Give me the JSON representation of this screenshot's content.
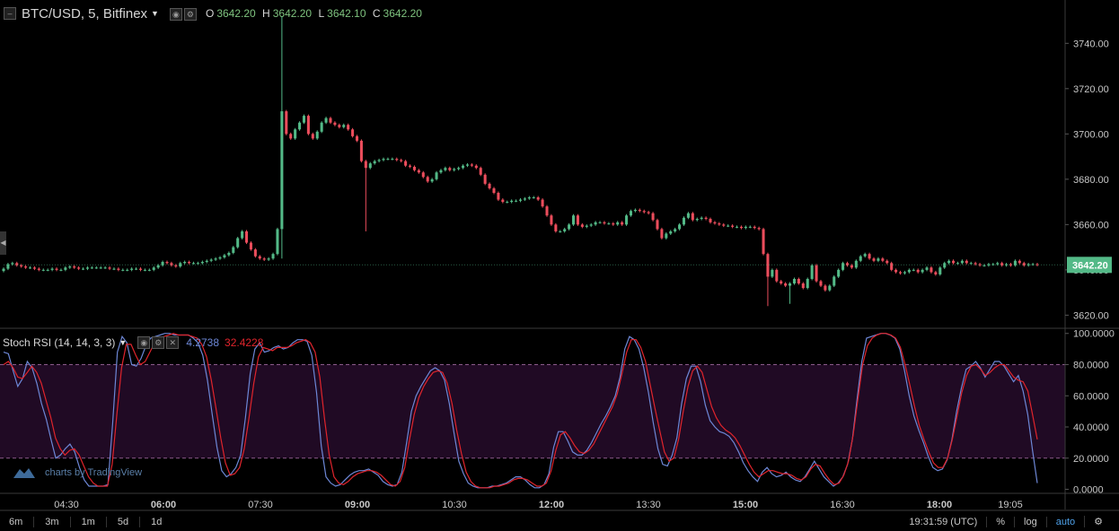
{
  "header": {
    "symbol": "BTC/USD, 5, Bitfinex",
    "o_label": "O",
    "o": "3642.20",
    "h_label": "H",
    "h": "3642.20",
    "l_label": "L",
    "l": "3642.10",
    "c_label": "C",
    "c": "3642.20"
  },
  "indicator": {
    "name": "Stoch RSI (14, 14, 3, 3)",
    "k_value": "4.2738",
    "d_value": "32.4228",
    "k_color": "#6d87d6",
    "d_color": "#e0242c"
  },
  "branding": "charts by TradingView",
  "timeframes": [
    "6m",
    "3m",
    "1m",
    "5d",
    "1d"
  ],
  "status": {
    "clock": "19:31:59 (UTC)",
    "percent": "%",
    "log": "log",
    "auto": "auto"
  },
  "colors": {
    "up": "#53b987",
    "down": "#eb4d5c",
    "band": "#200a24",
    "bg": "#000000"
  },
  "chart_data": [
    {
      "type": "candlestick",
      "title": "BTC/USD, 5, Bitfinex",
      "ylim": [
        3615,
        3752
      ],
      "yticks": [
        3620,
        3640,
        3660,
        3680,
        3700,
        3720,
        3740
      ],
      "ytick_labels": [
        "3620.00",
        "3640.00",
        "3660.00",
        "3680.00",
        "3700.00",
        "3720.00",
        "3740.00"
      ],
      "last_price": "3642.20",
      "xticks": [
        "04:30",
        "06:00",
        "07:30",
        "09:00",
        "10:30",
        "12:00",
        "13:30",
        "15:00",
        "16:30",
        "18:00",
        "19:05"
      ],
      "xticks_bold": [
        false,
        true,
        false,
        true,
        false,
        true,
        false,
        true,
        false,
        true,
        false
      ],
      "close": [
        3640.5,
        3642.5,
        3643,
        3642,
        3641.5,
        3641,
        3641,
        3640.5,
        3640,
        3640,
        3640,
        3640.5,
        3640,
        3640,
        3641,
        3641.5,
        3641,
        3640.5,
        3640.5,
        3641,
        3641,
        3641,
        3641,
        3641,
        3640.5,
        3640.5,
        3640,
        3640,
        3640,
        3640.5,
        3640.5,
        3640,
        3640,
        3640,
        3641,
        3642,
        3643.5,
        3643,
        3642,
        3641.5,
        3643,
        3643.5,
        3643,
        3643,
        3643,
        3643.5,
        3644,
        3644.5,
        3645,
        3645.5,
        3646.5,
        3647.5,
        3650,
        3654,
        3657,
        3652,
        3649,
        3646,
        3645,
        3644.5,
        3645,
        3647,
        3658,
        3710,
        3700,
        3698,
        3702,
        3705,
        3708,
        3700,
        3698,
        3701,
        3705,
        3707,
        3705,
        3704,
        3703,
        3704,
        3702,
        3699,
        3697,
        3688,
        3685,
        3687,
        3688,
        3688.5,
        3689,
        3689,
        3689,
        3688.5,
        3688,
        3686,
        3685.5,
        3684,
        3683,
        3681,
        3679,
        3680,
        3683,
        3684,
        3685,
        3684,
        3684.5,
        3685,
        3686,
        3686.5,
        3686,
        3685,
        3682,
        3678,
        3676,
        3674,
        3671,
        3670,
        3670,
        3670.5,
        3670.5,
        3671,
        3671.5,
        3672,
        3672,
        3671,
        3668,
        3664,
        3660,
        3657,
        3657,
        3658,
        3660,
        3664,
        3660,
        3659,
        3659.5,
        3660,
        3661,
        3661,
        3660.5,
        3660.5,
        3660,
        3661,
        3660,
        3664,
        3666,
        3666.5,
        3666,
        3665.5,
        3665,
        3662,
        3658,
        3654,
        3656,
        3657,
        3658,
        3660,
        3663,
        3665,
        3662,
        3662.5,
        3663,
        3662.5,
        3661,
        3660.5,
        3660,
        3659.5,
        3659.5,
        3659,
        3659,
        3658.5,
        3659,
        3659,
        3658.5,
        3658,
        3647,
        3637,
        3640,
        3635,
        3634,
        3633,
        3634,
        3636,
        3634,
        3632,
        3636,
        3642,
        3635,
        3633,
        3631,
        3633,
        3637,
        3640,
        3643,
        3642,
        3641,
        3644,
        3646,
        3647,
        3645,
        3644,
        3645,
        3644,
        3643,
        3640,
        3639,
        3638.5,
        3639,
        3640,
        3640,
        3639,
        3640,
        3641,
        3639,
        3638,
        3641,
        3643,
        3644,
        3643,
        3643,
        3644,
        3643,
        3643,
        3642.5,
        3642,
        3642,
        3642.5,
        3642.5,
        3643,
        3642,
        3642.5,
        3642,
        3644,
        3643,
        3642,
        3642.5,
        3642.5,
        3642.2
      ]
    },
    {
      "type": "line",
      "title": "Stoch RSI (14, 14, 3, 3)",
      "ylim": [
        -2,
        101
      ],
      "yticks": [
        0,
        20,
        40,
        60,
        80,
        100
      ],
      "ytick_labels": [
        "0.0000",
        "20.0000",
        "40.0000",
        "60.0000",
        "80.0000",
        "100.0000"
      ],
      "band": [
        20,
        80
      ],
      "series": [
        {
          "name": "K",
          "color": "#6d87d6",
          "values": [
            88,
            87,
            76,
            66,
            71,
            82,
            78,
            68,
            55,
            45,
            32,
            20,
            22,
            26,
            29,
            24,
            14,
            6,
            2,
            2,
            2,
            2,
            3,
            42,
            88,
            98,
            94,
            80,
            79,
            84,
            92,
            97,
            98,
            99,
            100,
            100,
            99,
            99,
            99,
            99,
            97,
            94,
            86,
            70,
            48,
            27,
            12,
            8,
            10,
            14,
            22,
            46,
            74,
            90,
            94,
            88,
            89,
            91,
            92,
            90,
            91,
            94,
            96,
            96,
            95,
            86,
            62,
            28,
            8,
            4,
            2,
            3,
            6,
            9,
            11,
            12,
            12,
            13,
            11,
            9,
            5,
            3,
            2,
            3,
            11,
            30,
            50,
            60,
            66,
            71,
            76,
            78,
            76,
            70,
            55,
            36,
            18,
            10,
            4,
            2,
            1,
            1,
            1,
            2,
            2,
            3,
            4,
            6,
            8,
            8,
            6,
            3,
            1,
            1,
            3,
            10,
            27,
            37,
            37,
            31,
            24,
            22,
            22,
            25,
            30,
            36,
            42,
            47,
            53,
            60,
            72,
            90,
            98,
            96,
            90,
            78,
            62,
            43,
            26,
            16,
            15,
            22,
            33,
            55,
            71,
            79,
            79,
            69,
            54,
            44,
            40,
            37,
            36,
            34,
            30,
            24,
            17,
            12,
            8,
            5,
            11,
            14,
            10,
            8,
            9,
            11,
            8,
            6,
            5,
            8,
            13,
            18,
            13,
            8,
            5,
            2,
            4,
            8,
            16,
            32,
            58,
            82,
            97,
            98,
            99,
            100,
            100,
            99,
            97,
            90,
            76,
            60,
            47,
            38,
            30,
            21,
            14,
            12,
            13,
            19,
            32,
            50,
            65,
            77,
            79,
            82,
            78,
            72,
            77,
            82,
            82,
            79,
            74,
            69,
            73,
            63,
            48,
            25,
            4
          ]
        },
        {
          "name": "D",
          "color": "#e0242c",
          "values": [
            80,
            82,
            78,
            72,
            71,
            75,
            79,
            75,
            68,
            57,
            46,
            33,
            26,
            22,
            25,
            26,
            22,
            15,
            8,
            4,
            2,
            2,
            2,
            16,
            48,
            78,
            93,
            93,
            86,
            80,
            82,
            88,
            94,
            97,
            98,
            99,
            100,
            99,
            99,
            99,
            98,
            97,
            93,
            85,
            70,
            52,
            33,
            17,
            9,
            10,
            14,
            26,
            46,
            68,
            85,
            91,
            90,
            89,
            91,
            91,
            91,
            92,
            94,
            95,
            96,
            94,
            88,
            72,
            45,
            22,
            8,
            4,
            3,
            5,
            8,
            10,
            11,
            12,
            12,
            11,
            9,
            6,
            3,
            2,
            5,
            14,
            32,
            48,
            59,
            66,
            71,
            75,
            76,
            75,
            68,
            55,
            38,
            23,
            11,
            5,
            2,
            1,
            1,
            1,
            2,
            2,
            3,
            4,
            6,
            7,
            7,
            6,
            4,
            2,
            2,
            4,
            12,
            25,
            35,
            37,
            33,
            28,
            24,
            23,
            25,
            29,
            35,
            41,
            47,
            53,
            61,
            74,
            88,
            96,
            96,
            91,
            82,
            67,
            52,
            38,
            24,
            18,
            20,
            32,
            50,
            66,
            76,
            79,
            75,
            64,
            53,
            46,
            41,
            38,
            36,
            33,
            28,
            22,
            16,
            11,
            8,
            10,
            12,
            12,
            11,
            10,
            10,
            9,
            7,
            6,
            8,
            13,
            16,
            15,
            10,
            6,
            3,
            4,
            9,
            18,
            35,
            58,
            80,
            92,
            97,
            99,
            100,
            100,
            99,
            97,
            91,
            80,
            67,
            53,
            41,
            32,
            24,
            17,
            14,
            14,
            20,
            32,
            47,
            62,
            73,
            79,
            80,
            77,
            73,
            75,
            78,
            80,
            80,
            76,
            72,
            70,
            69,
            63,
            48,
            32
          ]
        }
      ]
    }
  ]
}
